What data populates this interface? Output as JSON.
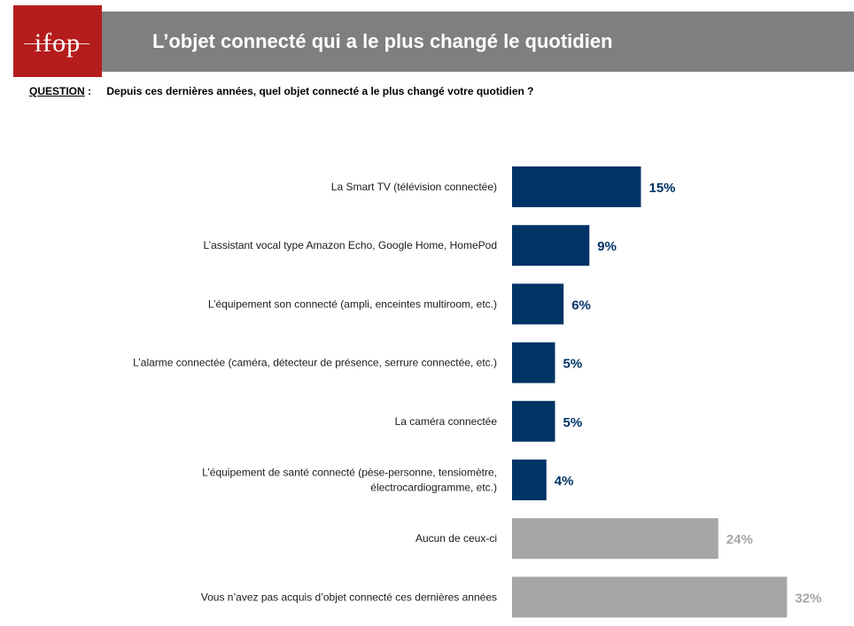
{
  "header": {
    "logo_text": "ifop",
    "title": "L’objet connecté qui a le plus changé le quotidien"
  },
  "question": {
    "label": "QUESTION",
    "text": "Depuis ces dernières années, quel objet connecté a le plus changé votre quotidien ?"
  },
  "colors": {
    "header_gray": "#7f7f7f",
    "logo_red": "#b51c1c",
    "bar_navy": "#003366",
    "bar_gray": "#a6a6a6"
  },
  "chart_data": {
    "type": "bar",
    "orientation": "horizontal",
    "title": "",
    "xlabel": "",
    "ylabel": "",
    "xlim": [
      0,
      32
    ],
    "grid": false,
    "legend": "none",
    "categories": [
      [
        "La Smart TV (télévision connectée)"
      ],
      [
        "L’assistant vocal type Amazon Echo, Google Home, HomePod"
      ],
      [
        "L’équipement son connecté (ampli, enceintes multiroom, etc.)"
      ],
      [
        "L’alarme connectée (caméra, détecteur de présence, serrure connectée, etc.)"
      ],
      [
        "La caméra connectée"
      ],
      [
        "L’équipement de santé connecté (pèse-personne, tensiomètre,",
        "électrocardiogramme, etc.)"
      ],
      [
        "Aucun de ceux-ci"
      ],
      [
        "Vous n’avez pas acquis d’objet connecté ces dernières années"
      ]
    ],
    "values": [
      15,
      9,
      6,
      5,
      5,
      4,
      24,
      32
    ],
    "value_labels": [
      "15%",
      "9%",
      "6%",
      "5%",
      "5%",
      "4%",
      "24%",
      "32%"
    ],
    "bar_colors": [
      "#003366",
      "#003366",
      "#003366",
      "#003366",
      "#003366",
      "#003366",
      "#a6a6a6",
      "#a6a6a6"
    ]
  }
}
